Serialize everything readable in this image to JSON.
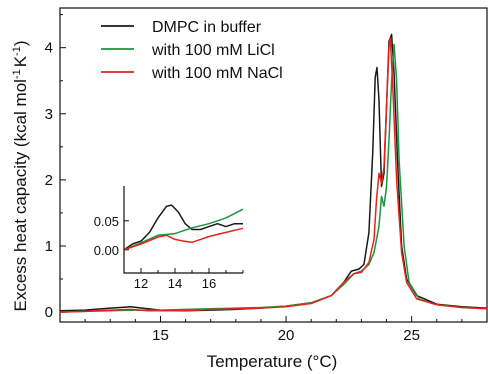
{
  "chart_data": [
    {
      "type": "line",
      "xlabel": "Temperature (°C)",
      "ylabel_main": "Excess heat capacity (kcal mol",
      "ylabel_sup1": "-1",
      "ylabel_mid": "K",
      "ylabel_sup2": "-1",
      "ylabel_end": ")",
      "xlim": [
        11,
        28
      ],
      "ylim": [
        -0.15,
        4.6
      ],
      "xticks": [
        15,
        20,
        25
      ],
      "yticks": [
        0,
        1,
        2,
        3,
        4
      ],
      "legend_position": "top-left",
      "series": [
        {
          "name": "DMPC in buffer",
          "color": "#1a1a1a",
          "points": [
            [
              11,
              0.02
            ],
            [
              12,
              0.03
            ],
            [
              13,
              0.06
            ],
            [
              13.8,
              0.08
            ],
            [
              14.5,
              0.05
            ],
            [
              15.2,
              0.02
            ],
            [
              16,
              0.02
            ],
            [
              17,
              0.03
            ],
            [
              18,
              0.04
            ],
            [
              19,
              0.06
            ],
            [
              20,
              0.09
            ],
            [
              21,
              0.14
            ],
            [
              21.8,
              0.25
            ],
            [
              22.3,
              0.45
            ],
            [
              22.6,
              0.62
            ],
            [
              22.9,
              0.65
            ],
            [
              23.1,
              0.72
            ],
            [
              23.3,
              1.2
            ],
            [
              23.45,
              2.4
            ],
            [
              23.55,
              3.55
            ],
            [
              23.62,
              3.7
            ],
            [
              23.7,
              3.2
            ],
            [
              23.8,
              1.9
            ],
            [
              23.9,
              2.1
            ],
            [
              24.0,
              3.1
            ],
            [
              24.1,
              4.1
            ],
            [
              24.2,
              4.2
            ],
            [
              24.3,
              3.6
            ],
            [
              24.45,
              2.2
            ],
            [
              24.6,
              1.0
            ],
            [
              24.8,
              0.5
            ],
            [
              25.2,
              0.25
            ],
            [
              26,
              0.12
            ],
            [
              27,
              0.08
            ],
            [
              28,
              0.06
            ]
          ]
        },
        {
          "name": "with 100 mM LiCl",
          "color": "#1a9641",
          "points": [
            [
              11,
              0.0
            ],
            [
              12,
              0.01
            ],
            [
              13,
              0.02
            ],
            [
              14,
              0.03
            ],
            [
              15,
              0.03
            ],
            [
              16,
              0.04
            ],
            [
              17,
              0.05
            ],
            [
              18,
              0.06
            ],
            [
              19,
              0.07
            ],
            [
              20,
              0.09
            ],
            [
              21,
              0.14
            ],
            [
              21.8,
              0.25
            ],
            [
              22.3,
              0.42
            ],
            [
              22.7,
              0.58
            ],
            [
              23.0,
              0.62
            ],
            [
              23.3,
              0.72
            ],
            [
              23.5,
              0.9
            ],
            [
              23.7,
              1.3
            ],
            [
              23.8,
              1.75
            ],
            [
              23.9,
              1.6
            ],
            [
              24.0,
              1.9
            ],
            [
              24.1,
              2.6
            ],
            [
              24.2,
              3.5
            ],
            [
              24.3,
              4.05
            ],
            [
              24.4,
              3.5
            ],
            [
              24.5,
              2.3
            ],
            [
              24.7,
              1.0
            ],
            [
              24.9,
              0.45
            ],
            [
              25.3,
              0.2
            ],
            [
              26,
              0.11
            ],
            [
              27,
              0.07
            ],
            [
              28,
              0.05
            ]
          ]
        },
        {
          "name": "with 100 mM NaCl",
          "color": "#e3261b",
          "points": [
            [
              11,
              0.0
            ],
            [
              12,
              0.01
            ],
            [
              13,
              0.03
            ],
            [
              13.8,
              0.04
            ],
            [
              14.5,
              0.02
            ],
            [
              15.5,
              0.02
            ],
            [
              16.5,
              0.03
            ],
            [
              17,
              0.04
            ],
            [
              18,
              0.05
            ],
            [
              19,
              0.06
            ],
            [
              20,
              0.08
            ],
            [
              21,
              0.13
            ],
            [
              21.8,
              0.25
            ],
            [
              22.3,
              0.45
            ],
            [
              22.7,
              0.58
            ],
            [
              23.0,
              0.6
            ],
            [
              23.3,
              0.75
            ],
            [
              23.5,
              1.1
            ],
            [
              23.6,
              1.7
            ],
            [
              23.7,
              2.1
            ],
            [
              23.8,
              1.95
            ],
            [
              23.9,
              2.2
            ],
            [
              24.0,
              3.1
            ],
            [
              24.1,
              4.0
            ],
            [
              24.15,
              4.15
            ],
            [
              24.25,
              3.4
            ],
            [
              24.4,
              2.0
            ],
            [
              24.6,
              0.9
            ],
            [
              24.8,
              0.45
            ],
            [
              25.2,
              0.2
            ],
            [
              26,
              0.11
            ],
            [
              27,
              0.07
            ],
            [
              28,
              0.05
            ]
          ]
        }
      ]
    },
    {
      "type": "line",
      "role": "inset",
      "xlim": [
        11,
        18
      ],
      "ylim": [
        -0.04,
        0.11
      ],
      "xticks": [
        12,
        14,
        16
      ],
      "yticks": [
        0.0,
        0.05
      ],
      "ytick_labels": [
        "0.00",
        "0.05"
      ],
      "series": [
        {
          "color": "#1a1a1a",
          "points": [
            [
              11,
              0.0
            ],
            [
              11.5,
              0.01
            ],
            [
              12,
              0.015
            ],
            [
              12.5,
              0.03
            ],
            [
              13,
              0.055
            ],
            [
              13.5,
              0.075
            ],
            [
              13.8,
              0.077
            ],
            [
              14.2,
              0.065
            ],
            [
              14.6,
              0.045
            ],
            [
              15,
              0.035
            ],
            [
              15.5,
              0.035
            ],
            [
              16,
              0.04
            ],
            [
              16.5,
              0.045
            ],
            [
              17,
              0.04
            ],
            [
              17.5,
              0.045
            ],
            [
              18,
              0.045
            ]
          ]
        },
        {
          "color": "#1a9641",
          "points": [
            [
              11,
              0.0
            ],
            [
              12,
              0.012
            ],
            [
              13,
              0.025
            ],
            [
              14,
              0.028
            ],
            [
              15,
              0.038
            ],
            [
              16,
              0.045
            ],
            [
              17,
              0.055
            ],
            [
              18,
              0.07
            ]
          ]
        },
        {
          "color": "#e3261b",
          "points": [
            [
              11,
              0.0
            ],
            [
              12,
              0.01
            ],
            [
              13,
              0.022
            ],
            [
              13.5,
              0.025
            ],
            [
              14,
              0.018
            ],
            [
              14.5,
              0.015
            ],
            [
              15,
              0.013
            ],
            [
              15.5,
              0.018
            ],
            [
              16,
              0.023
            ],
            [
              17,
              0.03
            ],
            [
              18,
              0.037
            ]
          ]
        }
      ]
    }
  ]
}
